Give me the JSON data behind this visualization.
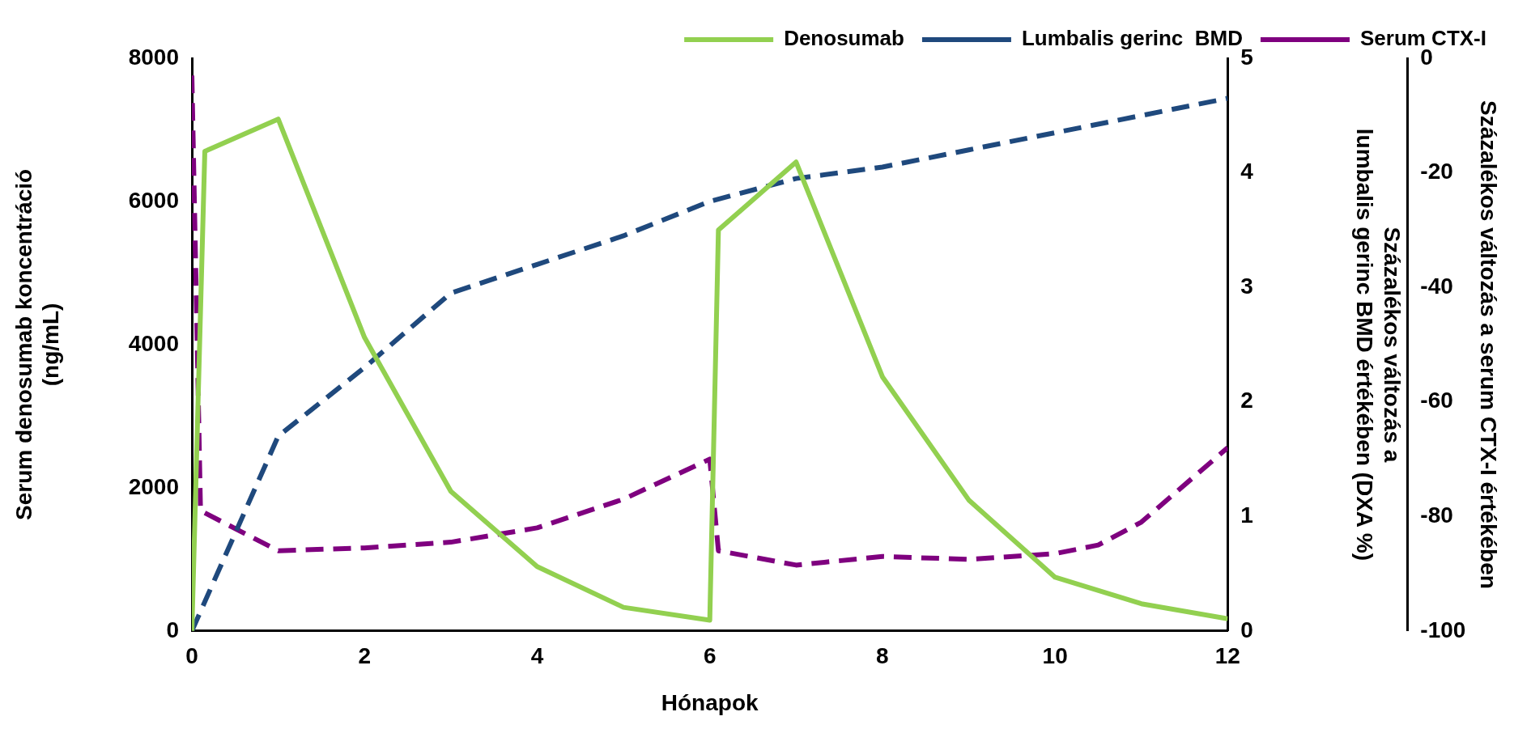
{
  "chart_data": {
    "type": "line",
    "xlabel": "Hónapok",
    "ylabel": "Serum denosumab koncentráció\n(ng/mL)",
    "y2label": "Százalékos változás a\nlumbalis gerinc BMD értékében (DXA %)",
    "y3label": "Százalékos változás a serum CTX-I értékében",
    "xlim": [
      0,
      12
    ],
    "xticks": [
      0,
      2,
      4,
      6,
      8,
      10,
      12
    ],
    "ylim": [
      0,
      8000
    ],
    "yticks": [
      0,
      2000,
      4000,
      6000,
      8000
    ],
    "y2lim": [
      0,
      5
    ],
    "y2ticks": [
      0,
      1,
      2,
      3,
      4,
      5
    ],
    "y3lim": [
      -100,
      0
    ],
    "y3ticks": [
      -100,
      -80,
      -60,
      -40,
      -20,
      0
    ],
    "grid": false,
    "legend": "top",
    "marker": "none",
    "series": [
      {
        "name": "Denosumab",
        "color": "#92d050",
        "line_style": "solid",
        "axis": "y",
        "x": [
          0,
          0.15,
          1,
          2,
          3,
          4,
          5,
          6,
          6.1,
          7,
          8,
          9,
          10,
          11,
          12
        ],
        "values": [
          0,
          6700,
          7150,
          4100,
          1950,
          900,
          330,
          150,
          5600,
          6550,
          3550,
          1830,
          750,
          380,
          170
        ]
      },
      {
        "name": "Lumbalis gerinc  BMD",
        "color": "#1f497d",
        "line_style": "dashed",
        "axis": "y2",
        "x": [
          0,
          1,
          2,
          3,
          4,
          5,
          6,
          7,
          8,
          9,
          10,
          11,
          12
        ],
        "values": [
          0,
          1.7,
          2.3,
          2.95,
          3.2,
          3.45,
          3.75,
          3.95,
          4.05,
          4.2,
          4.35,
          4.5,
          4.65
        ]
      },
      {
        "name": "Serum CTX-I",
        "color": "#7f007f",
        "line_style": "dashed",
        "axis": "y3",
        "x": [
          0,
          0.1,
          1,
          2,
          3,
          4,
          5,
          6,
          6.1,
          7,
          8,
          9,
          10,
          10.5,
          11,
          12
        ],
        "values": [
          -3,
          -79,
          -86,
          -85.5,
          -84.5,
          -82,
          -77,
          -70,
          -86,
          -88.5,
          -87,
          -87.5,
          -86.5,
          -85,
          -81,
          -68
        ]
      }
    ]
  }
}
